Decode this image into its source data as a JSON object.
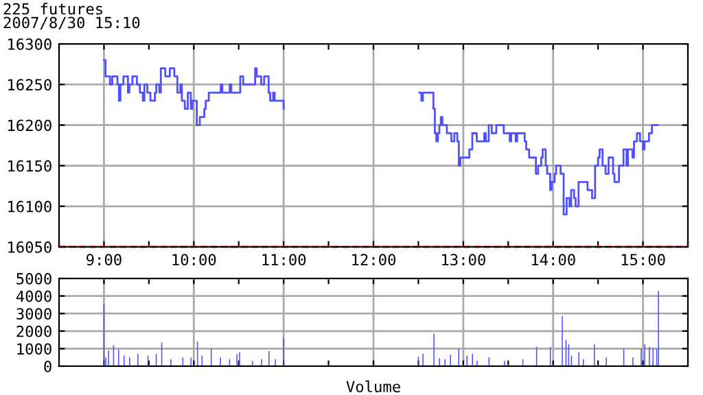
{
  "chart_data": [
    {
      "type": "step",
      "title": "225 futures",
      "subtitle": "2007/8/30 15:10",
      "xlim": [
        8.5,
        15.5
      ],
      "ylim": [
        16050,
        16300
      ],
      "yticks": [
        16050,
        16100,
        16150,
        16200,
        16250,
        16300
      ],
      "xticks": [
        {
          "value": 8.5,
          "label": null
        },
        {
          "value": 9,
          "label": "9:00"
        },
        {
          "value": 9.5,
          "label": null
        },
        {
          "value": 10,
          "label": "10:00"
        },
        {
          "value": 10.5,
          "label": null
        },
        {
          "value": 11,
          "label": "11:00"
        },
        {
          "value": 11.5,
          "label": null
        },
        {
          "value": 12,
          "label": "12:00"
        },
        {
          "value": 12.5,
          "label": null
        },
        {
          "value": 13,
          "label": "13:00"
        },
        {
          "value": 13.5,
          "label": null
        },
        {
          "value": 14,
          "label": "14:00"
        },
        {
          "value": 14.5,
          "label": null
        },
        {
          "value": 15,
          "label": "15:00"
        },
        {
          "value": 15.5,
          "label": null
        }
      ],
      "grid": true,
      "legend": false,
      "ref_lines": [
        {
          "axis": "y",
          "value": 16050,
          "color": "#ff0000",
          "line_style": "dashed"
        }
      ],
      "series": [
        {
          "color": "#5050ff",
          "x": [
            9.0,
            9.017,
            9.067,
            9.092,
            9.15,
            9.167,
            9.183,
            9.217,
            9.267,
            9.283,
            9.317,
            9.367,
            9.4,
            9.433,
            9.45,
            9.483,
            9.517,
            9.567,
            9.583,
            9.617,
            9.633,
            9.683,
            9.733,
            9.783,
            9.817,
            9.85,
            9.867,
            9.9,
            9.933,
            9.967,
            9.983,
            10.033,
            10.067,
            10.117,
            10.133,
            10.167,
            10.3,
            10.317,
            10.4,
            10.417,
            10.517,
            10.55,
            10.683,
            10.7,
            10.75,
            10.783,
            10.833,
            10.85,
            10.883,
            10.9,
            11.0
          ],
          "values": [
            16280,
            16260,
            16250,
            16260,
            16250,
            16230,
            16250,
            16260,
            16240,
            16250,
            16260,
            16250,
            16240,
            16230,
            16250,
            16240,
            16230,
            16240,
            16250,
            16240,
            16270,
            16260,
            16270,
            16260,
            16240,
            16250,
            16230,
            16220,
            16240,
            16220,
            16230,
            16200,
            16210,
            16220,
            16230,
            16240,
            16250,
            16240,
            16250,
            16240,
            16260,
            16250,
            16270,
            16260,
            16250,
            16260,
            16240,
            16230,
            16240,
            16230,
            16220
          ]
        },
        {
          "color": "#5050ff",
          "x": [
            12.51,
            12.533,
            12.55,
            12.667,
            12.683,
            12.7,
            12.717,
            12.733,
            12.75,
            12.767,
            12.817,
            12.867,
            12.9,
            12.933,
            12.95,
            12.967,
            13.067,
            13.1,
            13.15,
            13.233,
            13.25,
            13.283,
            13.317,
            13.367,
            13.45,
            13.517,
            13.533,
            13.583,
            13.6,
            13.683,
            13.7,
            13.733,
            13.808,
            13.833,
            13.867,
            13.883,
            13.917,
            13.933,
            13.967,
            13.983,
            14.017,
            14.033,
            14.083,
            14.117,
            14.15,
            14.183,
            14.2,
            14.233,
            14.25,
            14.283,
            14.383,
            14.433,
            14.467,
            14.5,
            14.517,
            14.55,
            14.583,
            14.617,
            14.667,
            14.683,
            14.733,
            14.783,
            14.817,
            14.833,
            14.883,
            14.9,
            14.933,
            14.967,
            15.0,
            15.017,
            15.067,
            15.1,
            15.167
          ],
          "values": [
            16240,
            16230,
            16240,
            16220,
            16190,
            16180,
            16190,
            16200,
            16210,
            16200,
            16190,
            16180,
            16190,
            16180,
            16150,
            16160,
            16170,
            16190,
            16180,
            16190,
            16180,
            16200,
            16190,
            16200,
            16190,
            16180,
            16190,
            16180,
            16190,
            16180,
            16170,
            16160,
            16140,
            16150,
            16160,
            16170,
            16150,
            16140,
            16120,
            16130,
            16140,
            16150,
            16140,
            16090,
            16110,
            16100,
            16120,
            16110,
            16100,
            16130,
            16120,
            16110,
            16150,
            16160,
            16170,
            16150,
            16140,
            16160,
            16140,
            16130,
            16150,
            16170,
            16150,
            16170,
            16160,
            16180,
            16190,
            16180,
            16170,
            16180,
            16190,
            16200,
            16200
          ]
        }
      ]
    },
    {
      "type": "bar",
      "xlabel": "Volume",
      "tick_labels": "y",
      "grid": true,
      "legend": false,
      "xlim": [
        8.5,
        15.5
      ],
      "ylim": [
        0,
        5000
      ],
      "yticks": [
        0,
        1000,
        2000,
        3000,
        4000,
        5000
      ],
      "xticks": [
        9,
        9.5,
        10,
        10.5,
        11,
        11.5,
        12,
        12.5,
        13,
        13.5,
        14,
        14.5,
        15
      ],
      "series": [
        {
          "color": "#5050ff",
          "x": [
            9.0,
            9.02,
            9.051,
            9.107,
            9.163,
            9.224,
            9.286,
            9.378,
            9.49,
            9.582,
            9.643,
            9.745,
            9.878,
            9.969,
            10.041,
            10.092,
            10.194,
            10.296,
            10.398,
            10.48,
            10.51,
            10.653,
            10.755,
            10.837,
            10.908,
            11.0,
            12.5,
            12.551,
            12.673,
            12.735,
            12.796,
            12.857,
            12.949,
            13.041,
            13.102,
            13.153,
            13.286,
            13.459,
            13.663,
            13.816,
            13.969,
            14.102,
            14.143,
            14.173,
            14.204,
            14.286,
            14.337,
            14.459,
            14.592,
            14.786,
            14.888,
            14.98,
            15.02,
            15.071,
            15.112,
            15.153,
            15.173
          ],
          "values": [
            3500,
            500,
            900,
            1200,
            950,
            600,
            500,
            700,
            600,
            700,
            1350,
            400,
            500,
            500,
            1400,
            600,
            1000,
            500,
            400,
            700,
            800,
            300,
            400,
            850,
            400,
            1600,
            550,
            700,
            1850,
            450,
            400,
            650,
            1000,
            600,
            700,
            300,
            500,
            300,
            400,
            1100,
            1100,
            2850,
            1500,
            1250,
            600,
            800,
            400,
            1250,
            500,
            1000,
            500,
            1000,
            1250,
            1100,
            1050,
            1000,
            4300
          ]
        }
      ]
    }
  ]
}
